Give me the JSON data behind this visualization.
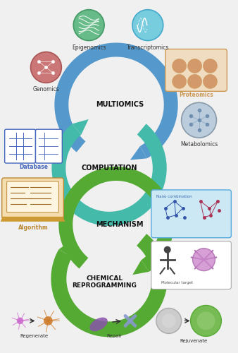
{
  "bg_color": "#f0f0f0",
  "arrow1_color": "#5599cc",
  "arrow2_color": "#44bbaa",
  "arrow3_color": "#55aa33",
  "arrow4_color": "#55aa33",
  "epigenomics_color": "#66bb88",
  "epigenomics_border": "#449966",
  "transcriptomics_color": "#77ccdd",
  "transcriptomics_border": "#44aacc",
  "genomics_color": "#cc7777",
  "genomics_border": "#aa5555",
  "proteomics_bg": "#f0dcc0",
  "proteomics_border": "#cc9955",
  "proteomics_dot": "#cc8855",
  "metabolomics_color": "#bbccdd",
  "metabolomics_border": "#889aaa",
  "db_border": "#4466bb",
  "db_text": "#4466bb",
  "laptop_bg": "#f5ddb0",
  "laptop_border": "#bb8833",
  "laptop_text": "#bb8833",
  "nano_bg": "#cce8f5",
  "nano_border": "#55aadd",
  "labels": {
    "multiomics": "MULTIOMICS",
    "computation": "COMPUTATION",
    "mechanism": "MECHANISM",
    "chemical": "CHEMICAL\nREPROGRAMMING",
    "epigenomics": "Epigenomics",
    "transcriptomics": "Transcriptomics",
    "genomics": "Genomics",
    "proteomics": "Proteomics",
    "metabolomics": "Metabolomics",
    "database": "Database",
    "algorithm": "Algorithm",
    "nano": "Nano combination",
    "mol_target": "Molecular target",
    "regenerate": "Regenerate",
    "repair": "Repair",
    "rejuvenate": "Rejuvenate"
  }
}
